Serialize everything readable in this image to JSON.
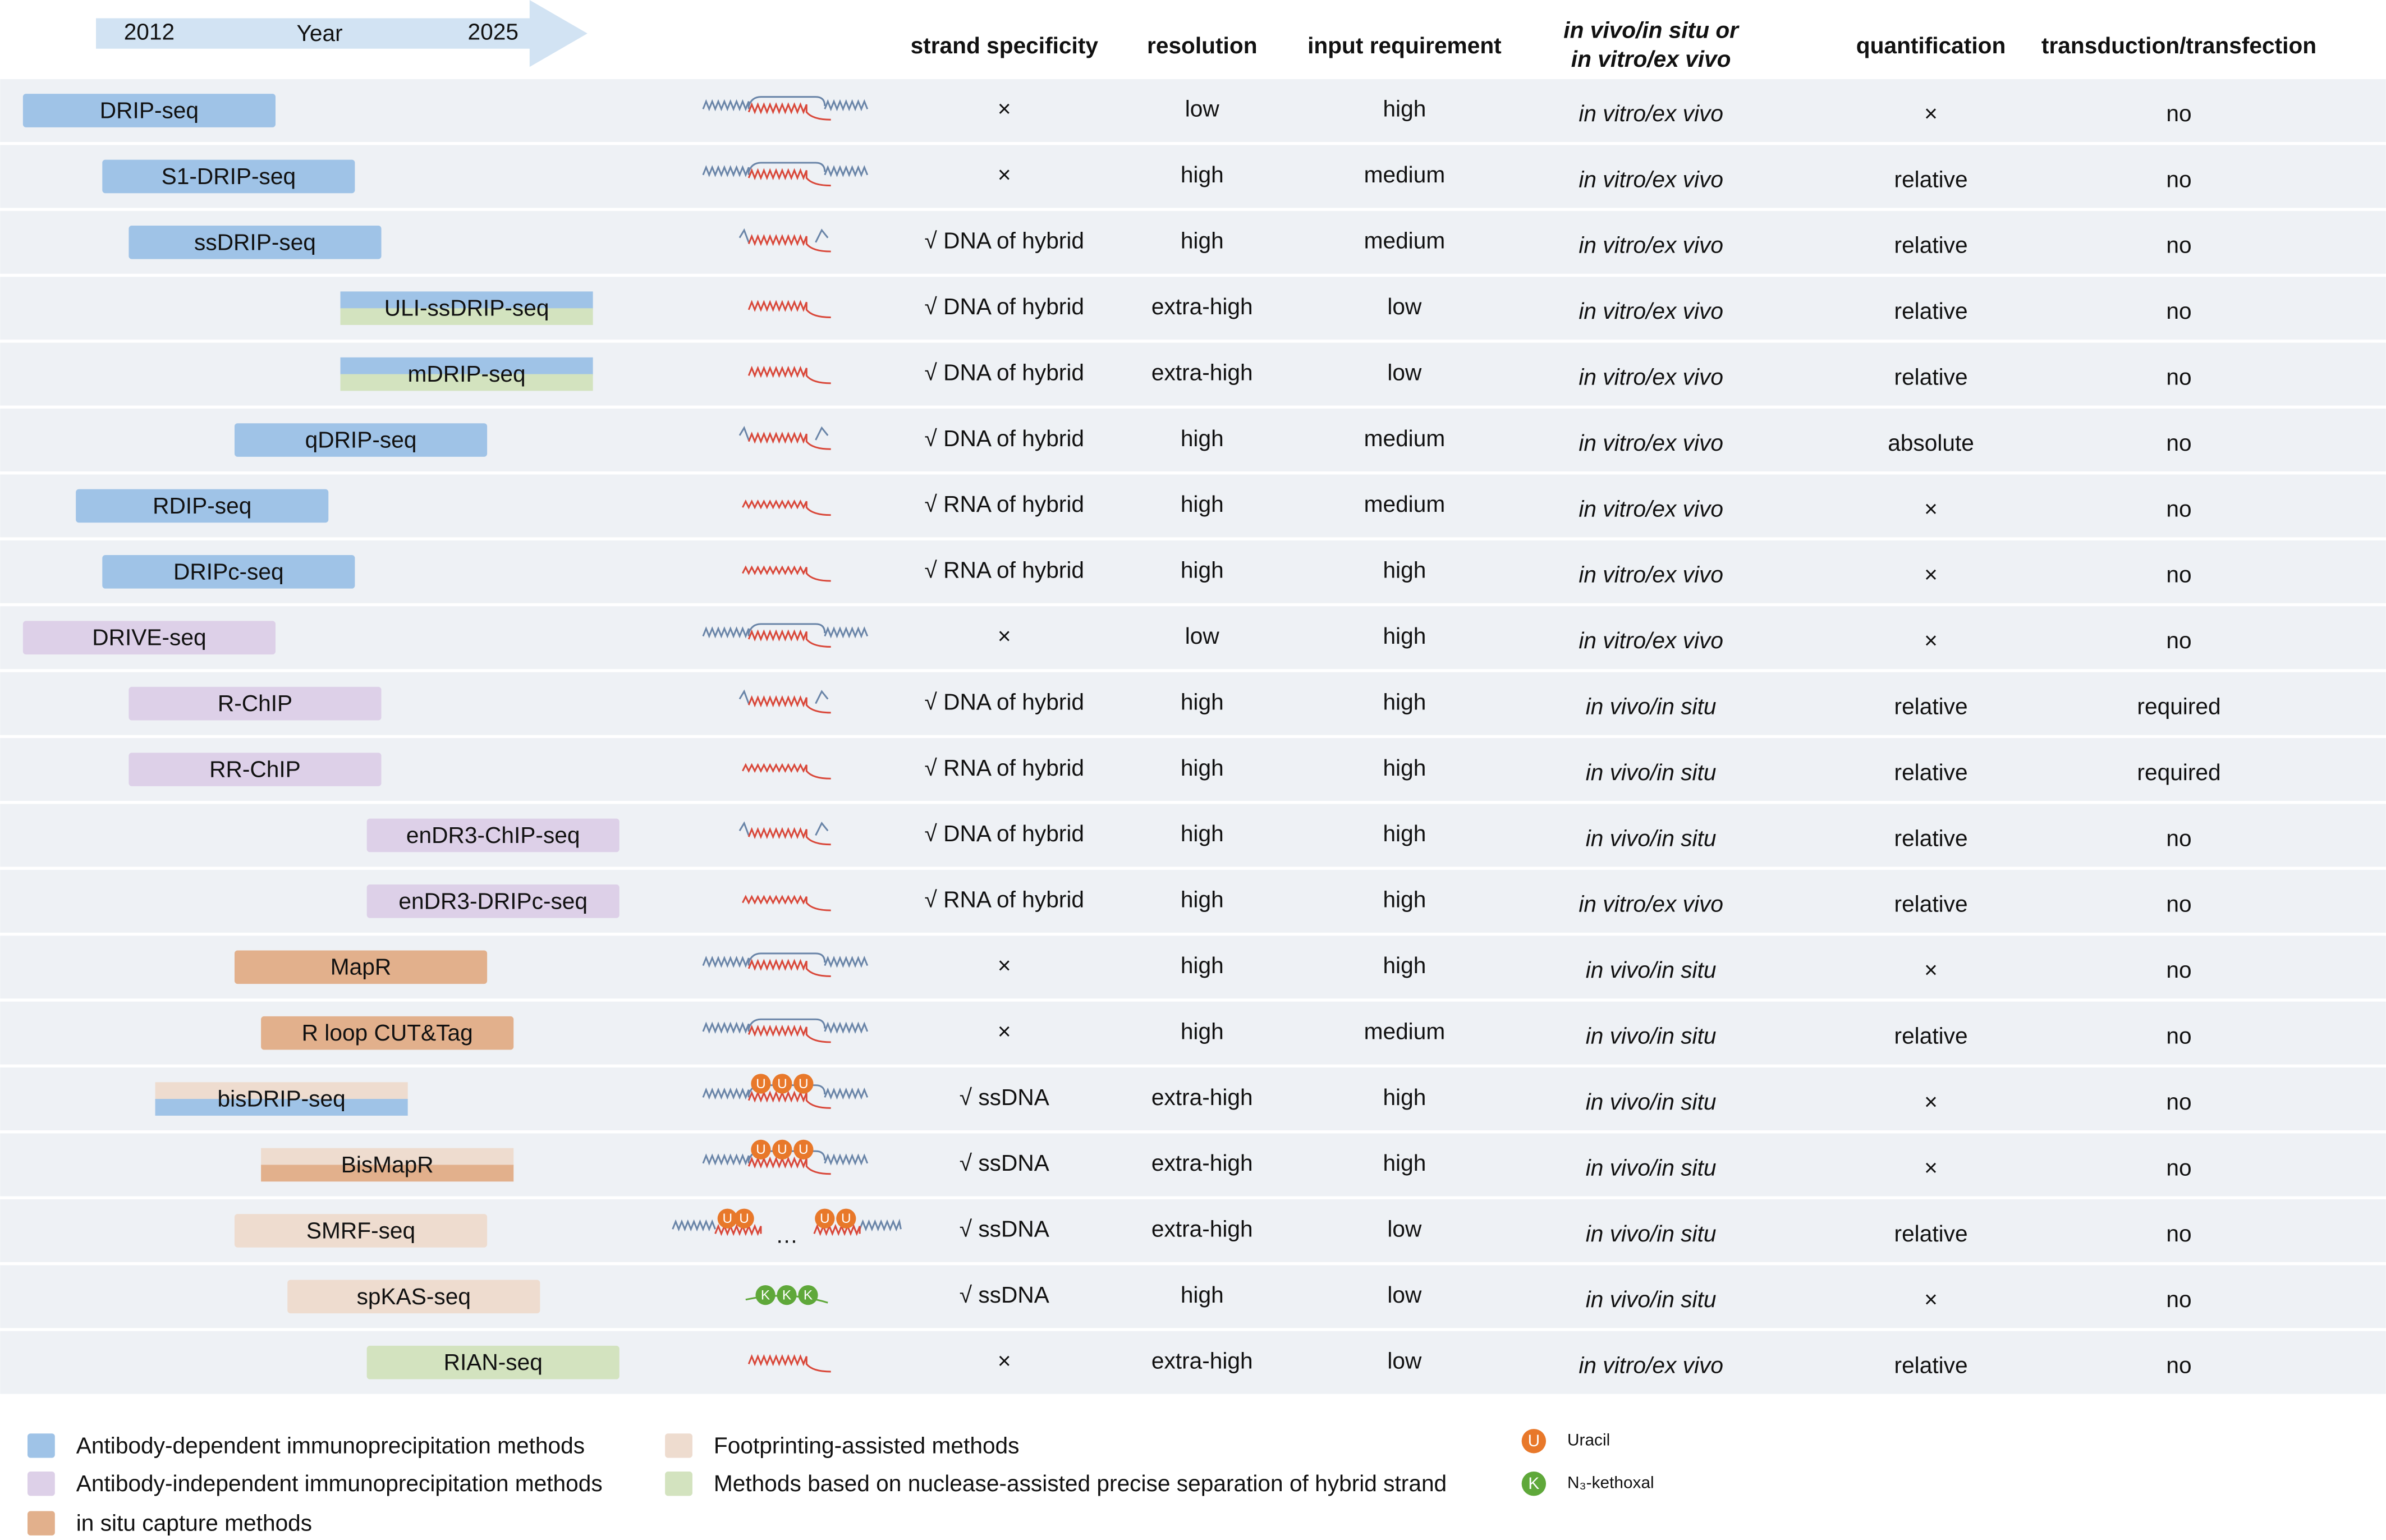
{
  "header": {
    "timeline": {
      "start": 2012,
      "label": "Year",
      "end": 2025
    },
    "columns": [
      "strand specificity",
      "resolution",
      "input requirement",
      [
        "in vivo/in situ or",
        "in vitro/ex vivo"
      ],
      "quantification",
      "transduction/transfection"
    ]
  },
  "rows": [
    {
      "method": "DRIP-seq",
      "year": 2012,
      "groups": [
        0
      ],
      "cells": [
        "×",
        "low",
        "high",
        "in vitro/ex vivo",
        "×",
        "no"
      ]
    },
    {
      "method": "S1-DRIP-seq",
      "year": 2015,
      "groups": [
        0
      ],
      "cells": [
        "×",
        "high",
        "medium",
        "in vitro/ex vivo",
        "relative",
        "no"
      ]
    },
    {
      "method": "ssDRIP-seq",
      "year": 2016,
      "groups": [
        0
      ],
      "cells": [
        "√ DNA of hybrid",
        "high",
        "medium",
        "in vitro/ex vivo",
        "relative",
        "no"
      ]
    },
    {
      "method": "ULI-ssDRIP-seq",
      "year": 2024,
      "groups": [
        0,
        4
      ],
      "cells": [
        "√ DNA of hybrid",
        "extra-high",
        "low",
        "in vitro/ex vivo",
        "relative",
        "no"
      ]
    },
    {
      "method": "mDRIP-seq",
      "year": 2024,
      "groups": [
        0,
        4
      ],
      "cells": [
        "√ DNA of hybrid",
        "extra-high",
        "low",
        "in vitro/ex vivo",
        "relative",
        "no"
      ]
    },
    {
      "method": "qDRIP-seq",
      "year": 2020,
      "groups": [
        0
      ],
      "cells": [
        "√ DNA of hybrid",
        "high",
        "medium",
        "in vitro/ex vivo",
        "absolute",
        "no"
      ]
    },
    {
      "method": "RDIP-seq",
      "year": 2014,
      "groups": [
        0
      ],
      "cells": [
        "√ RNA of hybrid",
        "high",
        "medium",
        "in vitro/ex vivo",
        "×",
        "no"
      ]
    },
    {
      "method": "DRIPc-seq",
      "year": 2015,
      "groups": [
        0
      ],
      "cells": [
        "√ RNA of hybrid",
        "high",
        "high",
        "in vitro/ex vivo",
        "×",
        "no"
      ]
    },
    {
      "method": "DRIVE-seq",
      "year": 2012,
      "groups": [
        1
      ],
      "cells": [
        "×",
        "low",
        "high",
        "in vitro/ex vivo",
        "×",
        "no"
      ]
    },
    {
      "method": "R-ChIP",
      "year": 2016,
      "groups": [
        1
      ],
      "cells": [
        "√ DNA of hybrid",
        "high",
        "high",
        "in vivo/in situ",
        "relative",
        "required"
      ]
    },
    {
      "method": "RR-ChIP",
      "year": 2016,
      "groups": [
        1
      ],
      "cells": [
        "√ RNA of hybrid",
        "high",
        "high",
        "in vivo/in situ",
        "relative",
        "required"
      ]
    },
    {
      "method": "enDR3-ChIP-seq",
      "year": 2025,
      "groups": [
        1
      ],
      "cells": [
        "√ DNA of hybrid",
        "high",
        "high",
        "in vivo/in situ",
        "relative",
        "no"
      ]
    },
    {
      "method": "enDR3-DRIPc-seq",
      "year": 2025,
      "groups": [
        1
      ],
      "cells": [
        "√ RNA of hybrid",
        "high",
        "high",
        "in vitro/ex vivo",
        "relative",
        "no"
      ]
    },
    {
      "method": "MapR",
      "year": 2020,
      "groups": [
        2
      ],
      "cells": [
        "×",
        "high",
        "high",
        "in vivo/in situ",
        "×",
        "no"
      ]
    },
    {
      "method": "R loop CUT&Tag",
      "year": 2021,
      "groups": [
        2
      ],
      "cells": [
        "×",
        "high",
        "medium",
        "in vivo/in situ",
        "relative",
        "no"
      ]
    },
    {
      "method": "bisDRIP-seq",
      "year": 2017,
      "groups": [
        3,
        0
      ],
      "cells": [
        "√ ssDNA",
        "extra-high",
        "high",
        "in vivo/in situ",
        "×",
        "no"
      ]
    },
    {
      "method": "BisMapR",
      "year": 2021,
      "groups": [
        3,
        2
      ],
      "cells": [
        "√ ssDNA",
        "extra-high",
        "high",
        "in vivo/in situ",
        "×",
        "no"
      ]
    },
    {
      "method": "SMRF-seq",
      "year": 2020,
      "groups": [
        3
      ],
      "cells": [
        "√ ssDNA",
        "extra-high",
        "low",
        "in vivo/in situ",
        "relative",
        "no"
      ]
    },
    {
      "method": "spKAS-seq",
      "year": 2022,
      "groups": [
        3
      ],
      "cells": [
        "√ ssDNA",
        "high",
        "low",
        "in vivo/in situ",
        "×",
        "no"
      ]
    },
    {
      "method": "RIAN-seq",
      "year": 2025,
      "groups": [
        4
      ],
      "cells": [
        "×",
        "extra-high",
        "low",
        "in vitro/ex vivo",
        "relative",
        "no"
      ]
    }
  ],
  "legend": {
    "groups": [
      {
        "label": "Antibody-dependent immunoprecipitation methods",
        "color": "#9fc3e7"
      },
      {
        "label": "Antibody-independent immunoprecipitation methods",
        "color": "#ddd0e8"
      },
      {
        "label": "in situ capture methods",
        "color": "#e2b08c"
      },
      {
        "label": "Footprinting-assisted methods",
        "color": "#eedccf"
      },
      {
        "label": "Methods based on nuclease-assisted precise separation of hybrid strand",
        "color": "#d3e3bf"
      }
    ],
    "symbols": [
      {
        "letter": "U",
        "label": "Uracil",
        "color": "#e8782a"
      },
      {
        "letter": "K",
        "label": "N₃-kethoxal",
        "color": "#5fa83a"
      }
    ]
  }
}
